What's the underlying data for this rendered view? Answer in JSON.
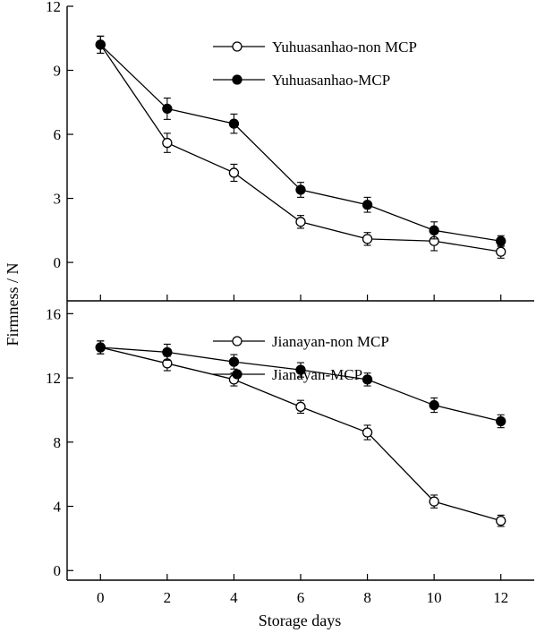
{
  "chart_data": [
    {
      "type": "line",
      "panel": "top",
      "x": [
        0,
        2,
        4,
        6,
        8,
        10,
        12
      ],
      "xlim": [
        -1,
        13
      ],
      "ylim": [
        -1.8,
        12
      ],
      "yticks": [
        0,
        3,
        6,
        9,
        12
      ],
      "grid": false,
      "legend": "top-right",
      "series": [
        {
          "name": "Yuhuasanhao-non MCP",
          "marker": "open-circle",
          "values": [
            10.2,
            5.6,
            4.2,
            1.9,
            1.1,
            1.0,
            0.5
          ],
          "errors": [
            0.4,
            0.45,
            0.4,
            0.3,
            0.3,
            0.45,
            0.3
          ]
        },
        {
          "name": "Yuhuasanhao-MCP",
          "marker": "filled-circle",
          "values": [
            10.2,
            7.2,
            6.5,
            3.4,
            2.7,
            1.5,
            1.0
          ],
          "errors": [
            0.4,
            0.5,
            0.45,
            0.35,
            0.35,
            0.4,
            0.25
          ]
        }
      ]
    },
    {
      "type": "line",
      "panel": "bottom",
      "x": [
        0,
        2,
        4,
        6,
        8,
        10,
        12
      ],
      "xlim": [
        -1,
        13
      ],
      "ylim": [
        -0.6,
        16.8
      ],
      "yticks": [
        0,
        4,
        8,
        12,
        16
      ],
      "grid": false,
      "legend": "top-right",
      "series": [
        {
          "name": "Jianayan-non MCP",
          "marker": "open-circle",
          "values": [
            13.9,
            12.9,
            11.9,
            10.2,
            8.6,
            4.3,
            3.1
          ],
          "errors": [
            0.4,
            0.45,
            0.4,
            0.4,
            0.45,
            0.4,
            0.35
          ]
        },
        {
          "name": "Jianayan-MCP",
          "marker": "filled-circle",
          "values": [
            13.9,
            13.6,
            13.0,
            12.5,
            11.9,
            10.3,
            9.3
          ],
          "errors": [
            0.4,
            0.5,
            0.45,
            0.45,
            0.4,
            0.45,
            0.4
          ]
        }
      ]
    }
  ],
  "xlabel": "Storage days",
  "ylabel": "Firmness / N",
  "colors": {
    "ink": "#000000",
    "background": "#ffffff"
  }
}
